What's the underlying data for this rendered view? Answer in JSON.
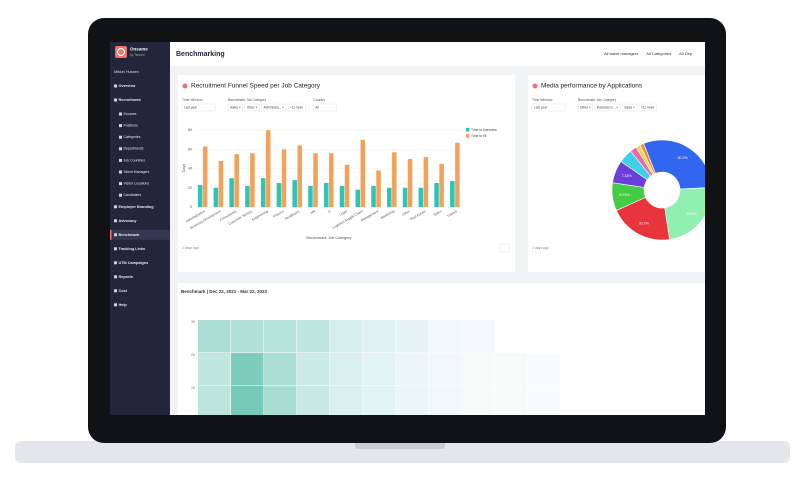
{
  "sidebar": {
    "brand": "Onsame",
    "brand_sub": "by Tenbeo",
    "user": "Mikkel Hussen",
    "menu": [
      {
        "label": "Overview",
        "sub": false
      },
      {
        "label": "Recruitment",
        "sub": false
      },
      {
        "label": "Sources",
        "sub": true
      },
      {
        "label": "Positions",
        "sub": true
      },
      {
        "label": "Categories",
        "sub": true
      },
      {
        "label": "Departments",
        "sub": true
      },
      {
        "label": "Job Countries",
        "sub": true
      },
      {
        "label": "Talent Managers",
        "sub": true
      },
      {
        "label": "Visitor Locations",
        "sub": true
      },
      {
        "label": "Candidates",
        "sub": true
      },
      {
        "label": "Employer Branding",
        "sub": false
      },
      {
        "label": "Advocacy",
        "sub": false
      },
      {
        "label": "Benchmark",
        "sub": false,
        "active": true
      },
      {
        "label": "Tracking Links",
        "sub": false
      },
      {
        "label": "UTM Campaigns",
        "sub": false
      },
      {
        "label": "Reports",
        "sub": false
      },
      {
        "label": "Cost",
        "sub": false
      },
      {
        "label": "Help",
        "sub": false
      }
    ]
  },
  "header": {
    "title": "Benchmarking",
    "filters": [
      "All talent managers",
      "All Categories",
      "All Dep"
    ]
  },
  "funnel_card": {
    "filters": [
      {
        "label": "Time Window",
        "chips": [
          "Last year"
        ]
      },
      {
        "label": "Benchmark Job Category",
        "chips": [
          "Sales ×",
          "Other ×",
          "Administra... ×",
          "+11 more"
        ]
      },
      {
        "label": "Country",
        "chips": [
          "All"
        ]
      }
    ],
    "footer": "2 days ago",
    "chart_data": {
      "type": "bar",
      "title": "Recruitment Funnel Speed per Job Category",
      "x_label": "Benchmark Job Category",
      "y_label": "Days",
      "categories": [
        "Administration",
        "Business Development",
        "Consultancy",
        "Customer Service",
        "Engineering",
        "Finance",
        "Healthcare",
        "HR",
        "IT",
        "Legal",
        "Logistics Supply Chain",
        "Management",
        "Marketing",
        "Other",
        "Real Estate",
        "Sales",
        "Trainee"
      ],
      "series": [
        {
          "name": "Time to Interview",
          "color": "#2ec4b6",
          "values": [
            23,
            20,
            30,
            22,
            30,
            25,
            28,
            22,
            25,
            22,
            18,
            22,
            20,
            20,
            20,
            25,
            27
          ]
        },
        {
          "name": "Time to fill",
          "color": "#f4a259",
          "values": [
            63,
            48,
            55,
            56,
            80,
            60,
            64,
            56,
            56,
            44,
            70,
            38,
            57,
            50,
            52,
            45,
            67
          ]
        }
      ],
      "ylim": [
        0,
        85
      ],
      "yticks": [
        0,
        20,
        40,
        60,
        80
      ],
      "grid": true,
      "legend": "top-right"
    }
  },
  "media_card": {
    "filters": [
      {
        "label": "Time Window",
        "chips": [
          "Last year"
        ]
      },
      {
        "label": "Benchmark Job Category",
        "chips": [
          "Other ×",
          "Business D... ×",
          "Sales ×",
          "+11 more"
        ]
      }
    ],
    "footer": "2 days ago",
    "chart_data": {
      "type": "donut",
      "title": "Media performance by Applications",
      "values": [
        30.2,
        23.4,
        20.7,
        9.03,
        7.34,
        4.5,
        2.2,
        1.4,
        1.23
      ],
      "value_labels": [
        "30.2%",
        "23.4%",
        "20.7%",
        "9.03%",
        "7.34%",
        null,
        null,
        null,
        null
      ],
      "colors": [
        "#3366ee",
        "#8ff0b0",
        "#e8343c",
        "#44cc44",
        "#6a3fd8",
        "#3fd0e8",
        "#e86bb0",
        "#e8d84a",
        "#f08a3c"
      ]
    }
  },
  "heatmap_card": {
    "title": "Benchmark | Dec 22, 2021 - Mar 22, 2023",
    "chart_data": {
      "type": "heatmap",
      "color": "#2fae93",
      "yticks": [
        "3h",
        "2h",
        "1h"
      ],
      "values": [
        [
          40,
          38,
          35,
          30,
          20,
          15,
          12,
          8,
          6,
          null,
          null
        ],
        [
          30,
          62,
          40,
          25,
          18,
          14,
          10,
          7,
          5,
          4,
          3
        ],
        [
          32,
          66,
          42,
          26,
          18,
          14,
          10,
          7,
          5,
          4,
          3
        ]
      ],
      "zlim": [
        0,
        100
      ]
    }
  }
}
